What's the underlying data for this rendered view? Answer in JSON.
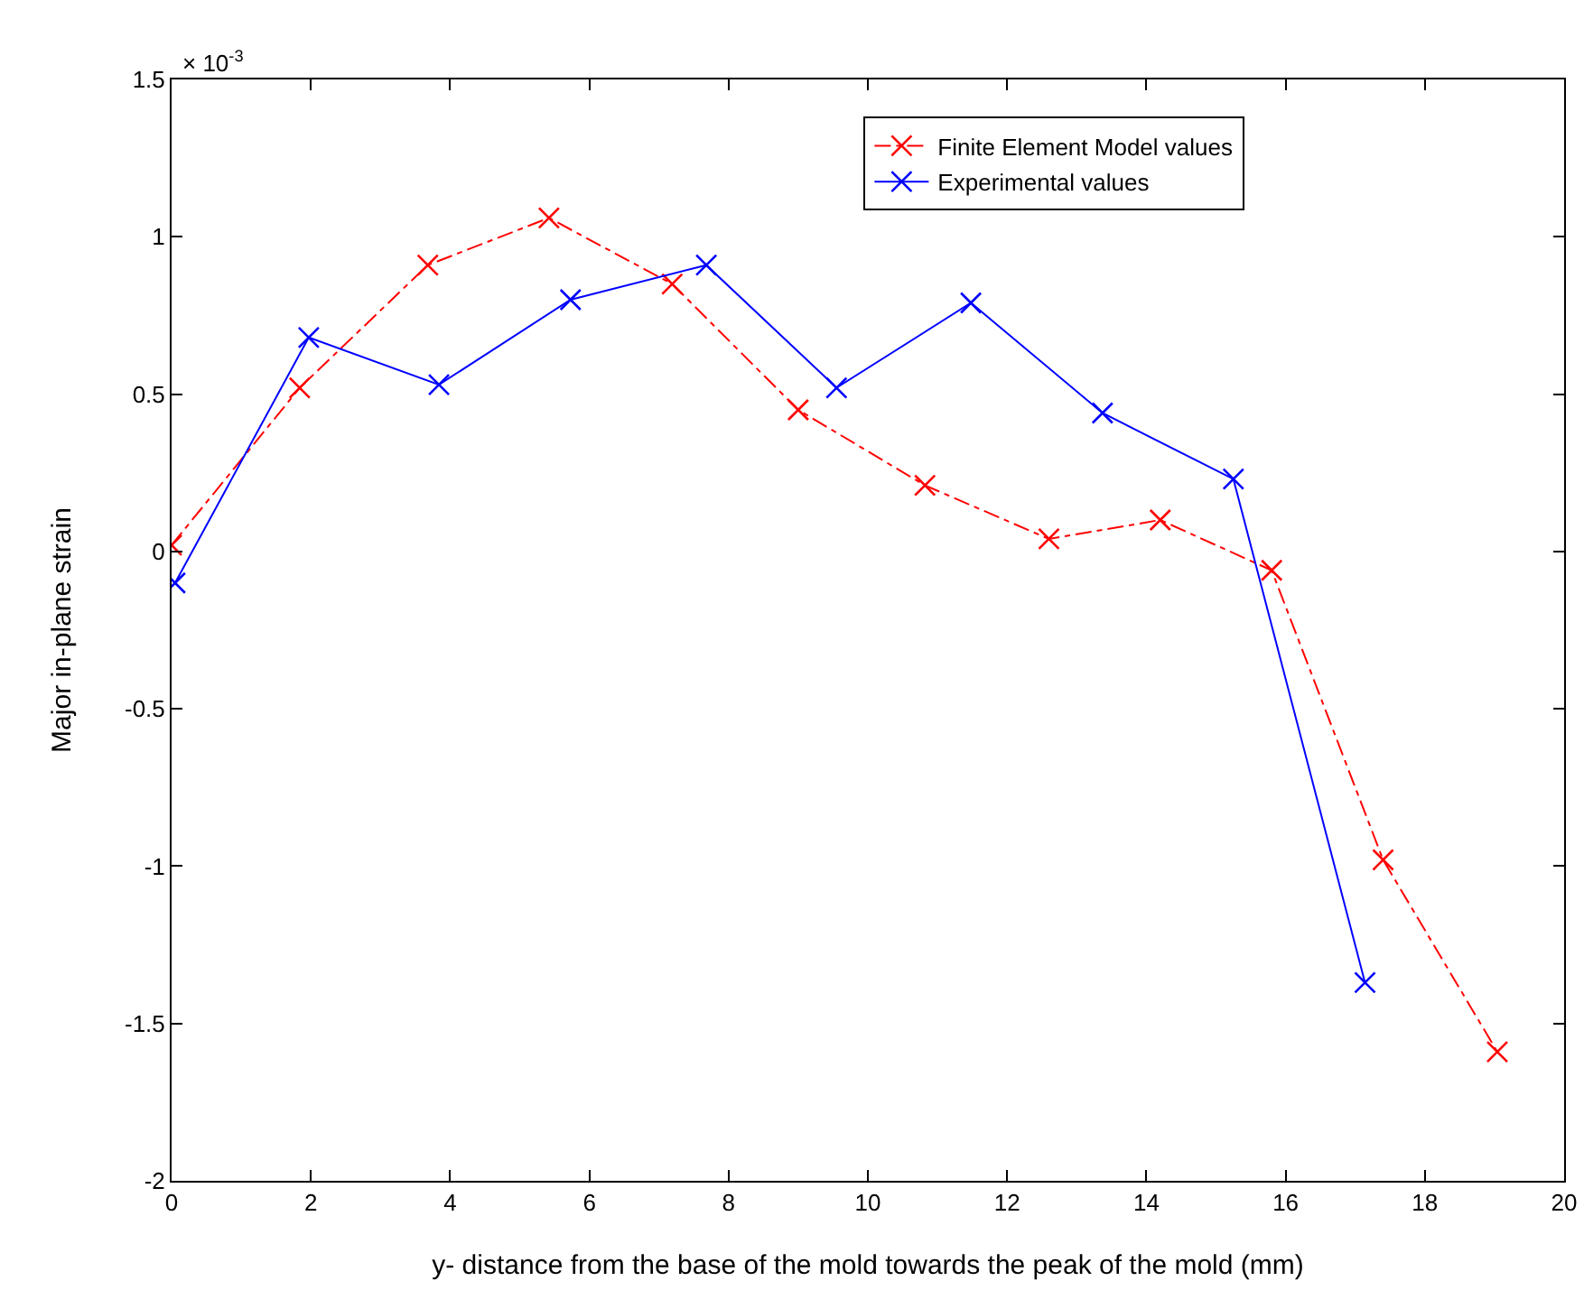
{
  "chart_data": {
    "type": "line",
    "xlabel": "y- distance from the base of the mold towards the peak of the mold (mm)",
    "ylabel": "Major in-plane strain",
    "annotations": [
      "× 10$^{-3}$"
    ],
    "series": [
      {
        "name": "Finite Element Model values",
        "color": "#ff0000",
        "line_style": "dashed",
        "x": [
          0,
          1.84,
          3.68,
          5.42,
          7.19,
          9.0,
          10.82,
          12.6,
          14.2,
          15.8,
          17.4,
          19.04
        ],
        "values": [
          0.02,
          0.52,
          0.91,
          1.06,
          0.85,
          0.45,
          0.21,
          0.04,
          0.1,
          -0.06,
          -0.98,
          -1.59
        ]
      },
      {
        "name": "Experimental values",
        "color": "#0000ff",
        "line_style": "solid",
        "x": [
          0.05,
          1.97,
          3.84,
          5.73,
          7.68,
          9.55,
          11.48,
          13.37,
          15.25,
          17.14
        ],
        "values": [
          -0.1,
          0.68,
          0.53,
          0.8,
          0.91,
          0.52,
          0.79,
          0.44,
          0.23,
          -1.37
        ]
      }
    ],
    "marker": "cross",
    "grid": false,
    "legend": "top right",
    "xlim": [
      0,
      20
    ],
    "xticks": [
      0,
      2,
      4,
      6,
      8,
      10,
      12,
      14,
      16,
      18,
      20
    ],
    "ylim": [
      -2,
      1.5
    ],
    "yticks": [
      -2,
      -1.5,
      -1,
      -0.5,
      0,
      0.5,
      1,
      1.5
    ]
  }
}
